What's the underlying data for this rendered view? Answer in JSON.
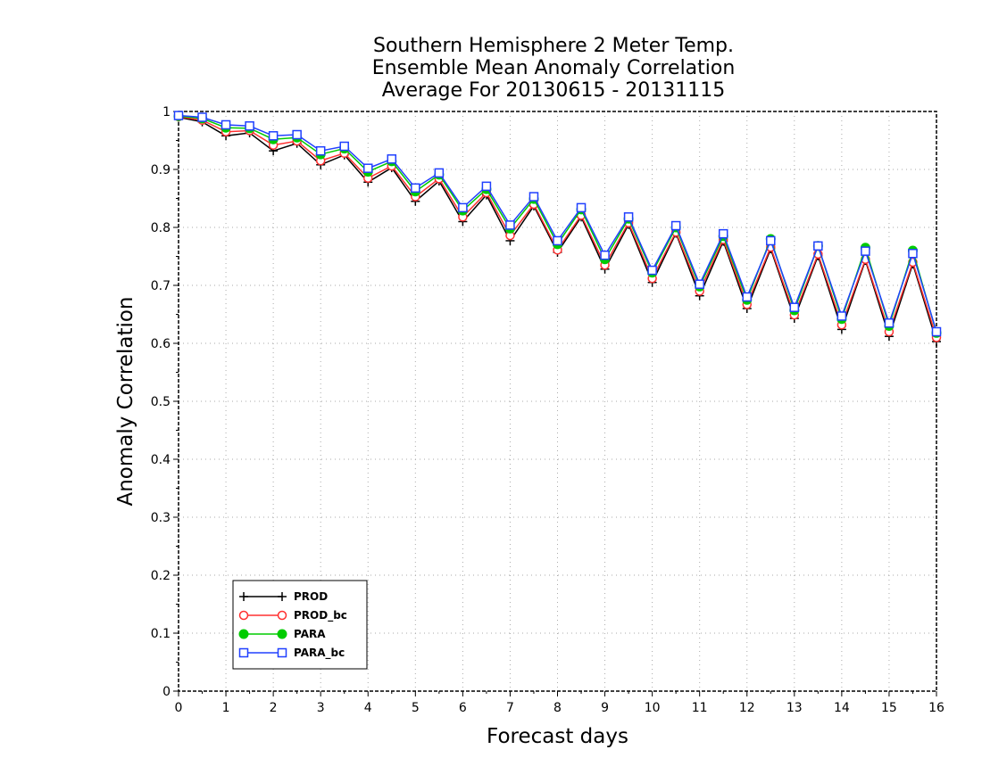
{
  "chart_data": {
    "type": "line",
    "title": [
      "Southern Hemisphere 2 Meter Temp.",
      "Ensemble Mean Anomaly Correlation",
      "Average For 20130615 - 20131115"
    ],
    "xlabel": "Forecast days",
    "ylabel": "Anomaly Correlation",
    "xlim": [
      0,
      16
    ],
    "ylim": [
      0,
      1
    ],
    "x_ticks": [
      "0",
      "1",
      "2",
      "3",
      "4",
      "5",
      "6",
      "7",
      "8",
      "9",
      "10",
      "11",
      "12",
      "13",
      "14",
      "15",
      "16"
    ],
    "y_ticks": [
      "0",
      "0.1",
      "0.2",
      "0.3",
      "0.4",
      "0.5",
      "0.6",
      "0.7",
      "0.8",
      "0.9",
      "1"
    ],
    "grid": true,
    "legend_position": "bottom-left",
    "x": [
      0,
      0.5,
      1,
      1.5,
      2,
      2.5,
      3,
      3.5,
      4,
      4.5,
      5,
      5.5,
      6,
      6.5,
      7,
      7.5,
      8,
      8.5,
      9,
      9.5,
      10,
      10.5,
      11,
      11.5,
      12,
      12.5,
      13,
      13.5,
      14,
      14.5,
      15,
      15.5,
      16
    ],
    "series": [
      {
        "name": "PROD",
        "color": "#000000",
        "marker": "plus",
        "values": [
          0.99,
          0.982,
          0.958,
          0.963,
          0.932,
          0.945,
          0.908,
          0.925,
          0.878,
          0.903,
          0.845,
          0.88,
          0.81,
          0.856,
          0.777,
          0.837,
          0.757,
          0.818,
          0.728,
          0.805,
          0.705,
          0.79,
          0.682,
          0.776,
          0.66,
          0.763,
          0.643,
          0.751,
          0.624,
          0.743,
          0.612,
          0.737,
          0.603
        ]
      },
      {
        "name": "PROD_bc",
        "color": "#ff3030",
        "marker": "circle-open",
        "values": [
          0.991,
          0.985,
          0.965,
          0.967,
          0.942,
          0.949,
          0.915,
          0.928,
          0.885,
          0.906,
          0.853,
          0.884,
          0.818,
          0.86,
          0.786,
          0.84,
          0.761,
          0.821,
          0.735,
          0.808,
          0.712,
          0.792,
          0.69,
          0.779,
          0.667,
          0.766,
          0.649,
          0.754,
          0.632,
          0.745,
          0.62,
          0.74,
          0.61
        ]
      },
      {
        "name": "PARA",
        "color": "#00cc00",
        "marker": "circle-filled",
        "values": [
          0.992,
          0.988,
          0.972,
          0.971,
          0.952,
          0.955,
          0.926,
          0.936,
          0.896,
          0.914,
          0.862,
          0.891,
          0.829,
          0.866,
          0.798,
          0.849,
          0.771,
          0.831,
          0.745,
          0.815,
          0.722,
          0.8,
          0.698,
          0.785,
          0.675,
          0.78,
          0.657,
          0.768,
          0.642,
          0.765,
          0.63,
          0.76,
          0.618
        ]
      },
      {
        "name": "PARA_bc",
        "color": "#2040ff",
        "marker": "square-open",
        "values": [
          0.993,
          0.99,
          0.977,
          0.975,
          0.958,
          0.96,
          0.932,
          0.94,
          0.902,
          0.918,
          0.868,
          0.894,
          0.834,
          0.871,
          0.804,
          0.853,
          0.777,
          0.834,
          0.752,
          0.818,
          0.726,
          0.803,
          0.702,
          0.789,
          0.68,
          0.777,
          0.662,
          0.768,
          0.647,
          0.759,
          0.635,
          0.755,
          0.62
        ]
      }
    ]
  }
}
